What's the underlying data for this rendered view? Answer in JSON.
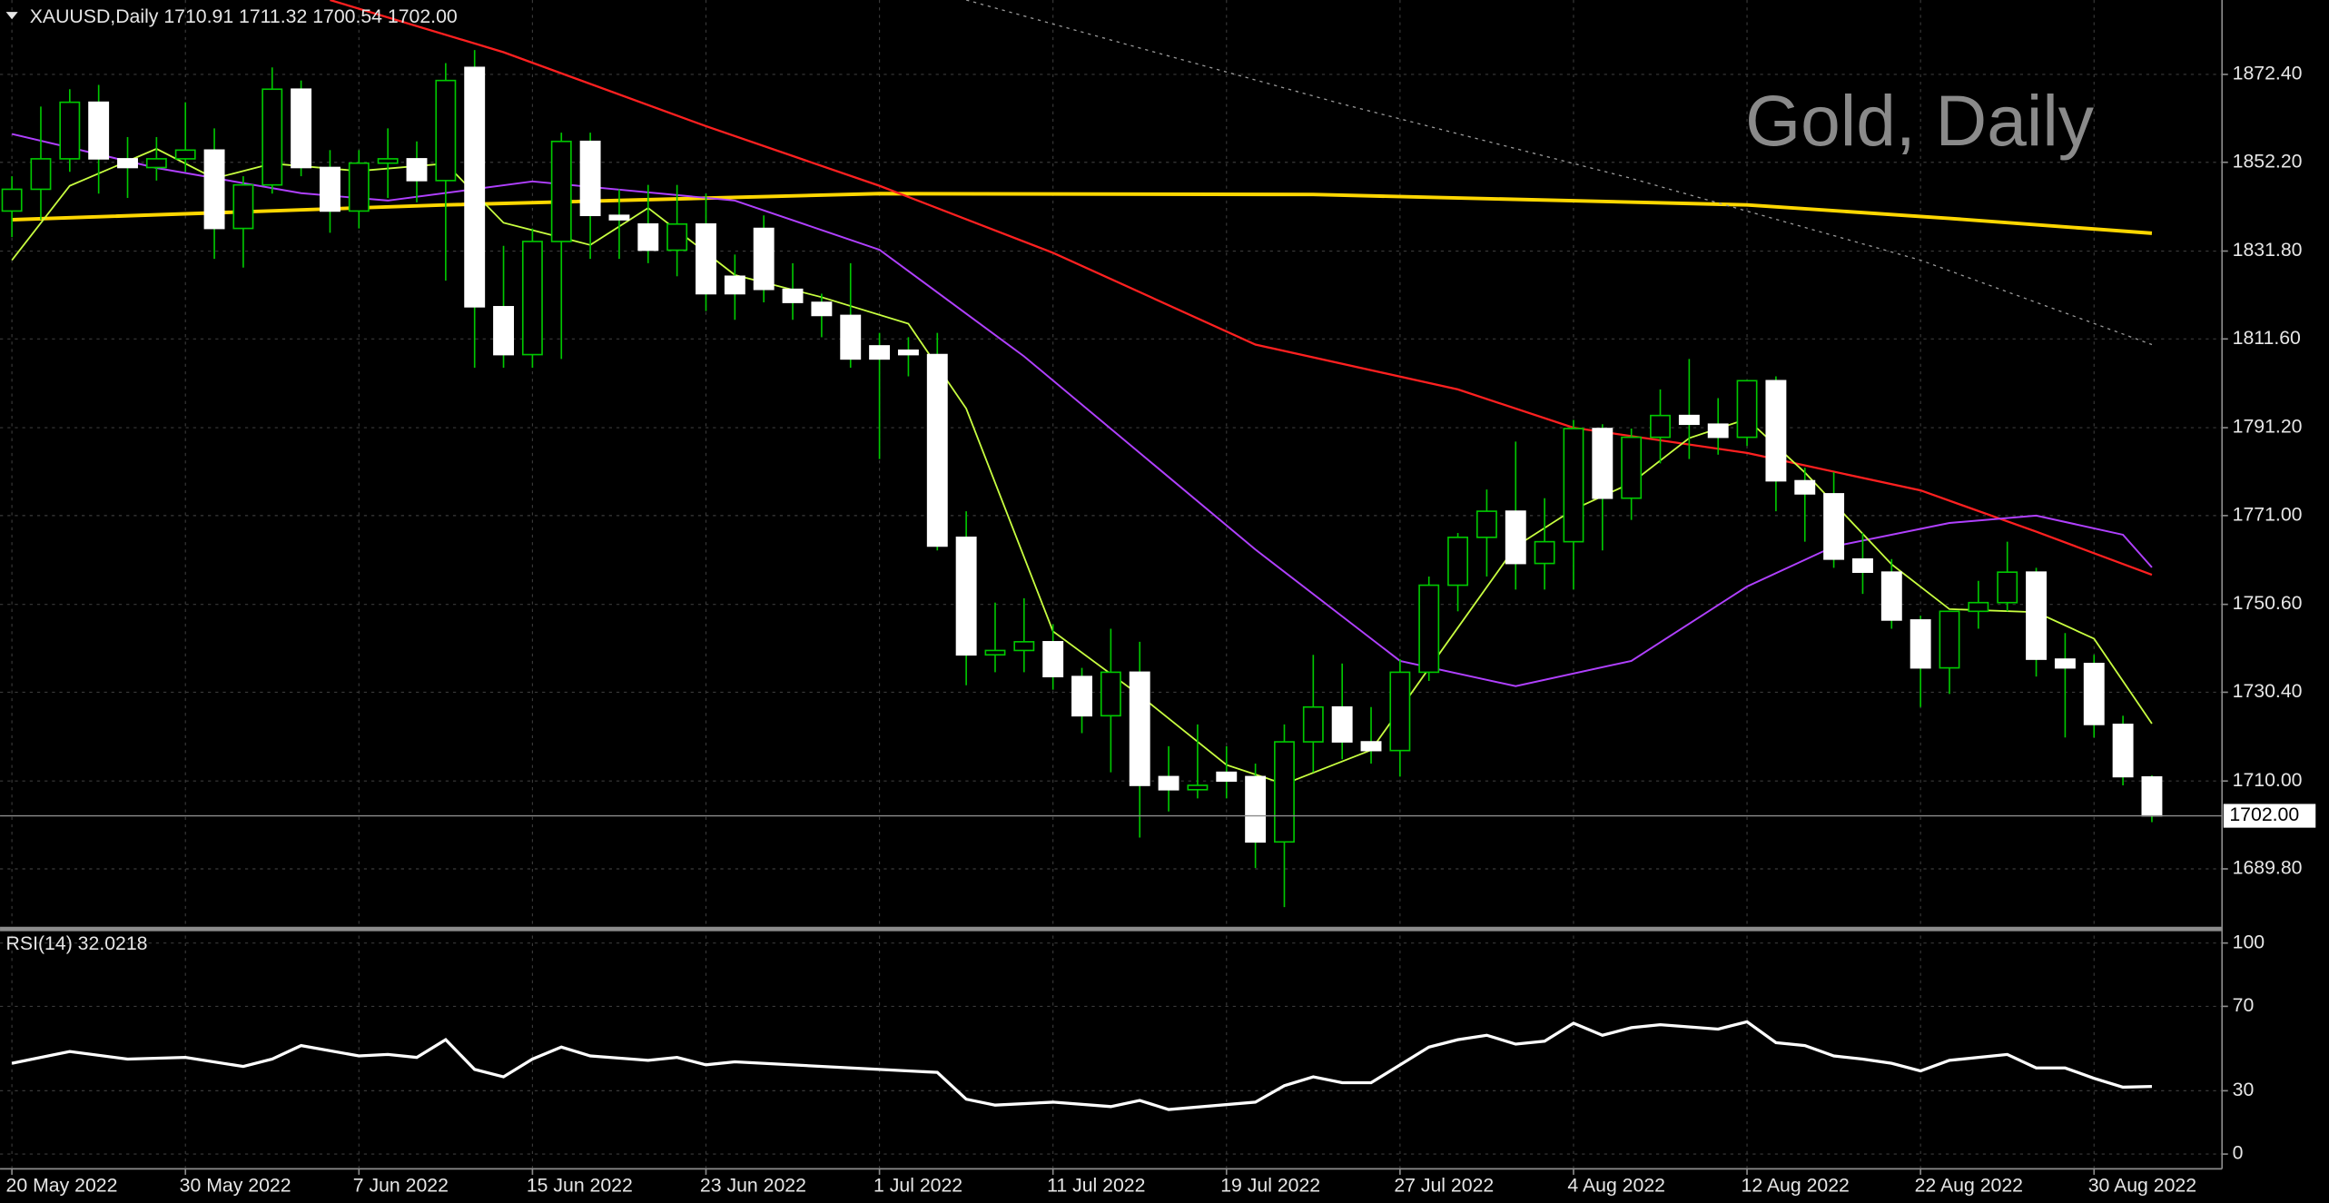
{
  "chart_data": [
    {
      "type": "candlestick",
      "header": "XAUUSD,Daily  1710.91 1711.32 1700.54 1702.00",
      "watermark": "Gold, Daily",
      "categories": [
        "20 May 2022",
        null,
        null,
        null,
        null,
        null,
        "30 May 2022",
        null,
        null,
        null,
        null,
        null,
        "7 Jun 2022",
        null,
        null,
        null,
        null,
        null,
        "15 Jun 2022",
        null,
        null,
        null,
        null,
        null,
        "23 Jun 2022",
        null,
        null,
        null,
        null,
        null,
        "1 Jul 2022",
        null,
        null,
        null,
        null,
        null,
        "11 Jul 2022",
        null,
        null,
        null,
        null,
        null,
        "19 Jul 2022",
        null,
        null,
        null,
        null,
        null,
        "27 Jul 2022",
        null,
        null,
        null,
        null,
        null,
        "4 Aug 2022",
        null,
        null,
        null,
        null,
        null,
        "12 Aug 2022",
        null,
        null,
        null,
        null,
        null,
        "22 Aug 2022",
        null,
        null,
        null,
        null,
        null,
        "30 Aug 2022",
        null,
        null
      ],
      "open": [
        1841,
        1846,
        1853,
        1866,
        1853,
        1851,
        1853,
        1855,
        1837,
        1847,
        1869,
        1851,
        1841,
        1852,
        1853,
        1848,
        1874,
        1819,
        1808,
        1834,
        1857,
        1840,
        1838,
        1832,
        1838,
        1826,
        1837,
        1823,
        1820,
        1817,
        1810,
        1809,
        1808,
        1766,
        1739,
        1740,
        1742,
        1734,
        1725,
        1735,
        1711,
        1708,
        1712,
        1711,
        1696,
        1719,
        1727,
        1719,
        1717,
        1735,
        1755,
        1766,
        1772,
        1760,
        1765,
        1791,
        1775,
        1789,
        1794,
        1792,
        1789,
        1802,
        1779,
        1776,
        1761,
        1758,
        1747,
        1736,
        1749,
        1751,
        1758,
        1738,
        1737,
        1723,
        1710.91
      ],
      "high": [
        1849,
        1865,
        1869,
        1870,
        1858,
        1858,
        1866,
        1860,
        1849,
        1874,
        1871,
        1855,
        1855,
        1860,
        1857,
        1875,
        1878,
        1833,
        1837,
        1859,
        1859,
        1846,
        1847,
        1847,
        1845,
        1831,
        1840,
        1829,
        1822,
        1829,
        1813,
        1812,
        1813,
        1772,
        1751,
        1752,
        1746,
        1736,
        1745,
        1742,
        1718,
        1723,
        1718,
        1714,
        1723,
        1739,
        1737,
        1727,
        1738,
        1757,
        1767,
        1777,
        1788,
        1775,
        1793,
        1792,
        1791,
        1800,
        1807,
        1798,
        1802,
        1803,
        1782,
        1781,
        1767,
        1761,
        1748,
        1749,
        1756,
        1765,
        1759,
        1744,
        1739,
        1725,
        1711.32
      ],
      "low": [
        1835,
        1839,
        1850,
        1845,
        1844,
        1848,
        1850,
        1830,
        1828,
        1845,
        1849,
        1836,
        1837,
        1844,
        1843,
        1825,
        1805,
        1805,
        1805,
        1807,
        1830,
        1830,
        1829,
        1826,
        1818,
        1816,
        1820,
        1816,
        1812,
        1805,
        1784,
        1803,
        1763,
        1732,
        1735,
        1735,
        1731,
        1721,
        1712,
        1697,
        1703,
        1706,
        1706,
        1690,
        1681,
        1712,
        1715,
        1714,
        1711,
        1733,
        1749,
        1757,
        1754,
        1754,
        1754,
        1763,
        1770,
        1783,
        1784,
        1785,
        1787,
        1772,
        1765,
        1759,
        1753,
        1745,
        1727,
        1730,
        1745,
        1749,
        1734,
        1720,
        1720,
        1709,
        1700.54
      ],
      "close": [
        1846,
        1853,
        1866,
        1853,
        1851,
        1853,
        1855,
        1837,
        1847,
        1869,
        1851,
        1841,
        1852,
        1853,
        1848,
        1871,
        1819,
        1808,
        1834,
        1857,
        1840,
        1839,
        1832,
        1838,
        1822,
        1822,
        1823,
        1820,
        1817,
        1807,
        1807,
        1808,
        1764,
        1739,
        1740,
        1742,
        1734,
        1725,
        1735,
        1709,
        1708,
        1709,
        1710,
        1696,
        1719,
        1727,
        1719,
        1717,
        1735,
        1755,
        1766,
        1772,
        1760,
        1765,
        1791,
        1775,
        1789,
        1794,
        1792,
        1789,
        1802,
        1779,
        1776,
        1761,
        1758,
        1747,
        1736,
        1749,
        1751,
        1758,
        1738,
        1736,
        1723,
        1711,
        1702
      ],
      "up_color": "#000000",
      "down_color": "#ffffff",
      "wick_color": "#00c800",
      "overlays": [
        {
          "color": "#ffd700",
          "width": 2.4,
          "dotted": false,
          "x": [
            0,
            15,
            30,
            45,
            60,
            67,
            74
          ],
          "values": [
            1839.0,
            1842.4,
            1845.0,
            1844.8,
            1842.4,
            1839.3,
            1835.9
          ]
        },
        {
          "color": "#ff2020",
          "width": 1.4,
          "dotted": false,
          "x": [
            11,
            17,
            24,
            30,
            36,
            43,
            50,
            54,
            60,
            66,
            70,
            74
          ],
          "values": [
            1889.5,
            1877.5,
            1860.5,
            1846.8,
            1831.4,
            1810.3,
            1800.0,
            1791.2,
            1785.4,
            1776.8,
            1767.3,
            1757.4
          ]
        },
        {
          "color": "#b040ff",
          "width": 1.2,
          "dotted": false,
          "x": [
            0,
            5,
            10,
            13,
            18,
            25,
            30,
            35,
            43,
            48,
            52,
            56,
            60,
            63,
            67,
            70,
            73,
            74
          ],
          "values": [
            1858.7,
            1850.9,
            1845.1,
            1843.4,
            1847.8,
            1843.4,
            1832.1,
            1807.6,
            1763.2,
            1737.6,
            1731.8,
            1737.6,
            1754.7,
            1763.9,
            1769.3,
            1771.0,
            1766.6,
            1759.1
          ]
        },
        {
          "color": "#c8ff40",
          "width": 1.1,
          "dotted": false,
          "x": [
            0,
            2,
            5,
            7,
            9,
            12,
            15,
            17,
            20,
            22,
            25,
            28,
            31,
            33,
            36,
            39,
            42,
            44,
            47,
            49,
            52,
            54,
            56,
            58,
            60,
            62,
            65,
            67,
            70,
            72,
            74
          ],
          "values": [
            1829.7,
            1846.8,
            1855.3,
            1848.5,
            1851.9,
            1850.2,
            1851.9,
            1838.3,
            1833.2,
            1841.7,
            1826.3,
            1821.2,
            1815.1,
            1795.6,
            1744.4,
            1729.7,
            1713.7,
            1709.3,
            1717.1,
            1735.9,
            1763.9,
            1772.4,
            1778.5,
            1788.8,
            1793.2,
            1780.9,
            1759.8,
            1749.5,
            1748.8,
            1742.7,
            1723.2
          ]
        },
        {
          "color": "#9a9a9a",
          "width": 0.8,
          "dotted": true,
          "x": [
            33,
            46,
            56,
            66,
            74
          ],
          "values": [
            1889.5,
            1865.6,
            1848.5,
            1829.7,
            1810.3
          ]
        }
      ],
      "last_price": {
        "value": 1702,
        "label": "1702.00"
      },
      "ylim": [
        1676.5,
        1889.5
      ],
      "yticks": [
        {
          "value": 1689.8,
          "label": "1689.80"
        },
        {
          "value": 1710,
          "label": "1710.00"
        },
        {
          "value": 1730.4,
          "label": "1730.40"
        },
        {
          "value": 1750.6,
          "label": "1750.60"
        },
        {
          "value": 1771,
          "label": "1771.00"
        },
        {
          "value": 1791.2,
          "label": "1791.20"
        },
        {
          "value": 1811.6,
          "label": "1811.60"
        },
        {
          "value": 1831.8,
          "label": "1831.80"
        },
        {
          "value": 1852.2,
          "label": "1852.20"
        },
        {
          "value": 1872.4,
          "label": "1872.40"
        }
      ],
      "grid": true
    },
    {
      "type": "line",
      "title": "RSI(14) 32.0218",
      "color": "#ffffff",
      "x": [
        0,
        2,
        4,
        6,
        8,
        9,
        10,
        12,
        13,
        14,
        15,
        16,
        17,
        18,
        19,
        20,
        22,
        23,
        24,
        25,
        30,
        32,
        33,
        34,
        36,
        38,
        39,
        40,
        43,
        44,
        45,
        46,
        47,
        49,
        50,
        51,
        52,
        53,
        54,
        55,
        56,
        57,
        59,
        60,
        61,
        62,
        63,
        64,
        65,
        66,
        67,
        69,
        70,
        71,
        72,
        73,
        74
      ],
      "values": [
        43,
        48.6,
        45,
        45.8,
        41.5,
        45,
        51.4,
        46.5,
        47.2,
        45.8,
        54.2,
        40.1,
        36.6,
        45,
        50.7,
        46.5,
        44.4,
        45.8,
        42.3,
        43.7,
        40.1,
        38.7,
        26,
        23.2,
        24.6,
        22.5,
        25.4,
        21.1,
        24.6,
        32.4,
        36.6,
        33.8,
        33.8,
        50.7,
        54.2,
        56.3,
        52.1,
        53.5,
        62,
        56.3,
        59.9,
        61.3,
        59.2,
        62.7,
        52.8,
        51.4,
        46.5,
        45,
        43,
        39.4,
        44.4,
        47.2,
        40.8,
        40.8,
        35.9,
        31.7,
        32.0218
      ],
      "ylim": [
        -7,
        105.6
      ],
      "yticks": [
        0,
        30,
        70,
        100
      ],
      "grid": true
    }
  ]
}
